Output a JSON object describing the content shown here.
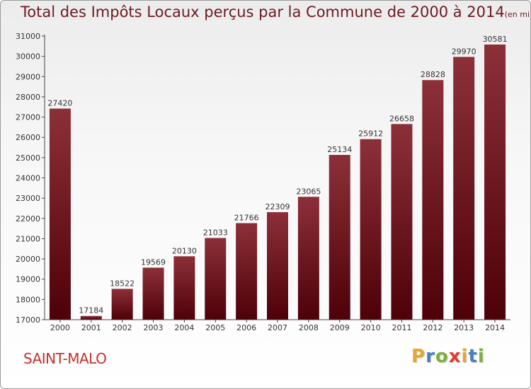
{
  "title": "Total des Impôts Locaux perçus par la Commune de 2000 à 2014",
  "title_unit": "(en milliers d'€)",
  "commune": "SAINT-MALO",
  "brand": {
    "letters": [
      "P",
      "r",
      "o",
      "x",
      "i",
      "t",
      "i"
    ],
    "colors": [
      "#e8a530",
      "#4a7fc1",
      "#7bb13c",
      "#e23a2e",
      "#e8a530",
      "#4a7fc1",
      "#7bb13c"
    ]
  },
  "colors": {
    "bar_top": "#8c3038",
    "bar_bottom": "#4e0008",
    "axis": "#444444",
    "label": "#333333"
  },
  "chart_data": {
    "type": "bar",
    "categories": [
      "2000",
      "2001",
      "2002",
      "2003",
      "2004",
      "2005",
      "2006",
      "2007",
      "2008",
      "2009",
      "2010",
      "2011",
      "2012",
      "2013",
      "2014"
    ],
    "values": [
      27420,
      17184,
      18522,
      19569,
      20130,
      21033,
      21766,
      22309,
      23065,
      25134,
      25912,
      26658,
      28828,
      29970,
      30581
    ],
    "ylim": [
      17000,
      31000
    ],
    "yticks": [
      17000,
      18000,
      19000,
      20000,
      21000,
      22000,
      23000,
      24000,
      25000,
      26000,
      27000,
      28000,
      29000,
      30000,
      31000
    ],
    "grid": false,
    "data_labels": true
  }
}
